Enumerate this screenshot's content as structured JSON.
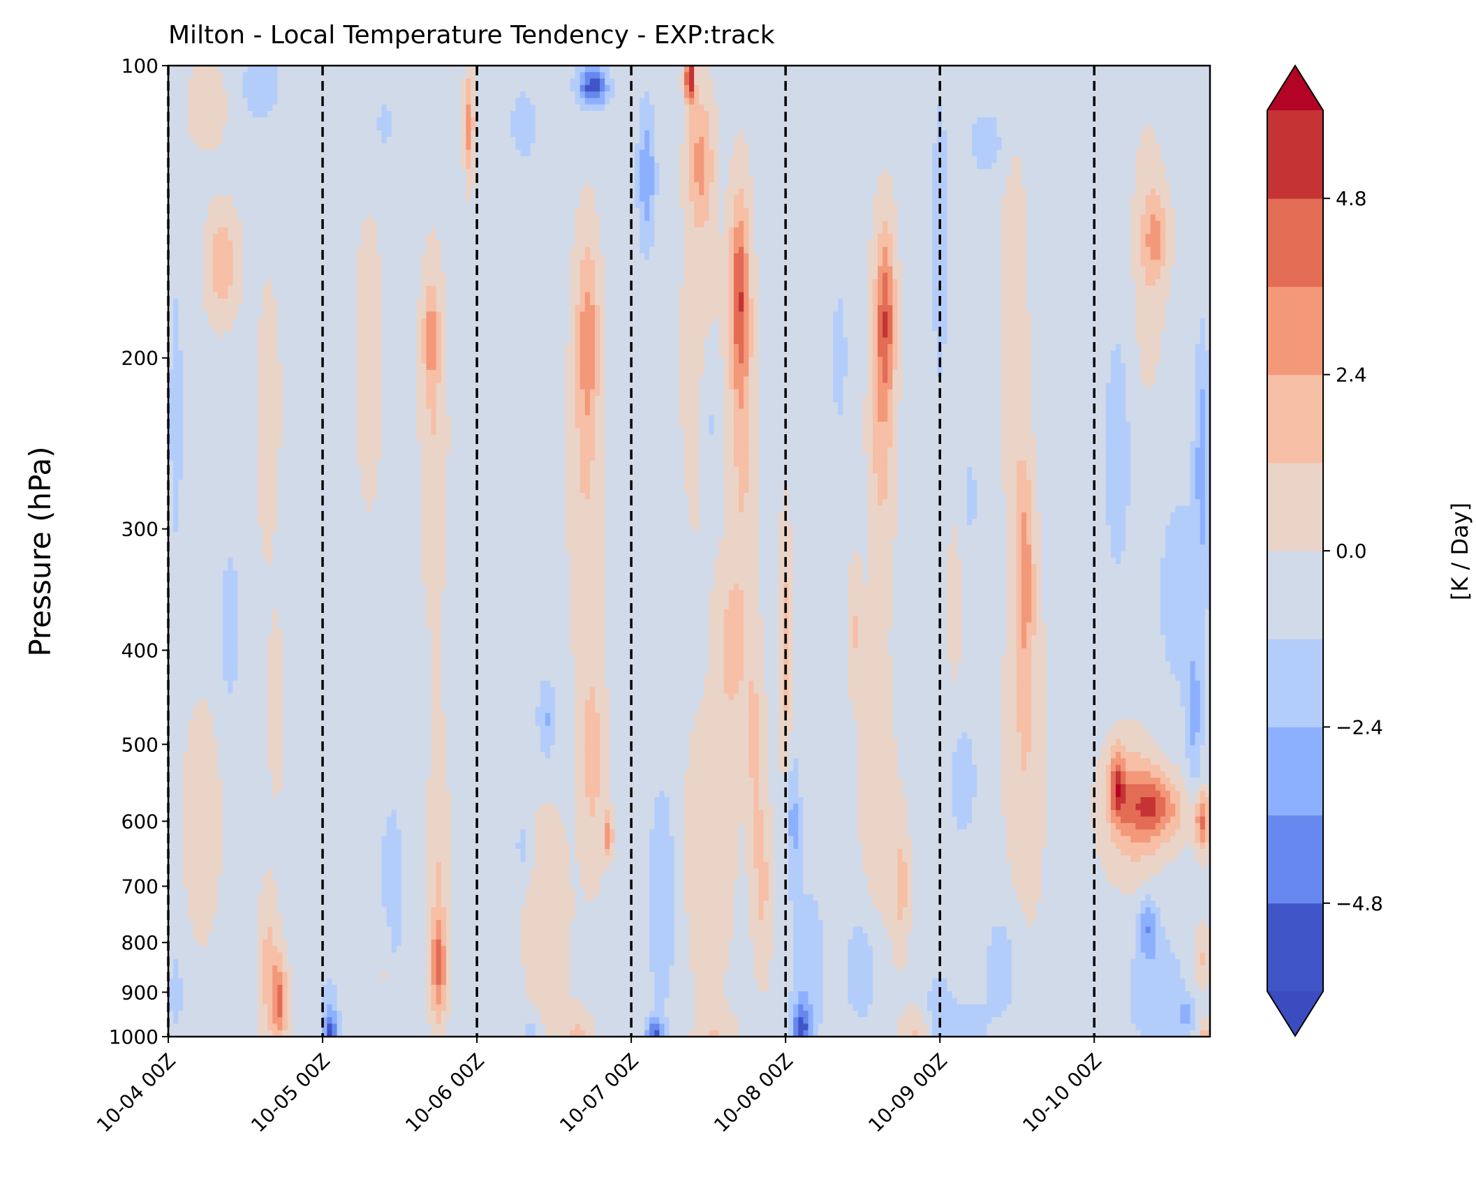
{
  "chart_data": {
    "type": "heatmap",
    "title": "Milton - Local Temperature Tendency - EXP:track",
    "ylabel": "Pressure (hPa)",
    "xlabel": "",
    "y_scale": "log",
    "y_inverted": true,
    "ylim": [
      1000,
      100
    ],
    "y_ticks": [
      100,
      200,
      300,
      400,
      500,
      600,
      700,
      800,
      900,
      1000
    ],
    "x_range_days": [
      0,
      6.75
    ],
    "x_tick_labels": [
      "10-04 00Z",
      "10-05 00Z",
      "10-06 00Z",
      "10-07 00Z",
      "10-08 00Z",
      "10-09 00Z",
      "10-10 00Z"
    ],
    "vertical_dashed_lines": [
      "10-04 00Z",
      "10-05 00Z",
      "10-06 00Z",
      "10-07 00Z",
      "10-08 00Z",
      "10-09 00Z",
      "10-10 00Z"
    ],
    "colorbar": {
      "label": "[K / Day]",
      "ticks": [
        -4.8,
        -2.4,
        0.0,
        2.4,
        4.8
      ],
      "tick_labels": [
        "−4.8",
        "−2.4",
        "0.0",
        "2.4",
        "4.8"
      ],
      "levels": [
        -6.0,
        -4.8,
        -3.6,
        -2.4,
        -1.2,
        0.0,
        1.2,
        2.4,
        3.6,
        4.8,
        6.0
      ],
      "colors": [
        "#4055c8",
        "#6788ee",
        "#8db0fe",
        "#b3cdfb",
        "#d1dae9",
        "#ead4c8",
        "#f6bfa6",
        "#f4987a",
        "#e36c55",
        "#c53334"
      ],
      "under_color": "#3b4cc0",
      "over_color": "#b40426",
      "extend": "both",
      "colormap": "coolwarm"
    },
    "features": [
      {
        "t": 0.05,
        "p": 230,
        "v": -2.0,
        "sx": 0.04,
        "sy": 0.3
      },
      {
        "t": 0.35,
        "p": 160,
        "v": 2.5,
        "sx": 0.1,
        "sy": 0.12
      },
      {
        "t": 0.25,
        "p": 110,
        "v": 1.2,
        "sx": 0.12,
        "sy": 0.1
      },
      {
        "t": 0.6,
        "p": 105,
        "v": -2.0,
        "sx": 0.12,
        "sy": 0.08
      },
      {
        "t": 0.7,
        "p": 330,
        "v": -0.5,
        "sx": 0.18,
        "sy": 0.35
      },
      {
        "t": 0.4,
        "p": 380,
        "v": -2.0,
        "sx": 0.06,
        "sy": 0.18
      },
      {
        "t": 0.7,
        "p": 450,
        "v": 1.6,
        "sx": 0.05,
        "sy": 0.2
      },
      {
        "t": 0.65,
        "p": 250,
        "v": 1.4,
        "sx": 0.08,
        "sy": 0.35
      },
      {
        "t": 0.72,
        "p": 920,
        "v": 4.0,
        "sx": 0.05,
        "sy": 0.1
      },
      {
        "t": 0.65,
        "p": 850,
        "v": 2.0,
        "sx": 0.06,
        "sy": 0.18
      },
      {
        "t": 0.22,
        "p": 600,
        "v": 0.6,
        "sx": 0.18,
        "sy": 0.4
      },
      {
        "t": 0.05,
        "p": 900,
        "v": -1.4,
        "sx": 0.06,
        "sy": 0.12
      },
      {
        "t": 1.05,
        "p": 1000,
        "v": -5.2,
        "sx": 0.04,
        "sy": 0.04
      },
      {
        "t": 1.05,
        "p": 940,
        "v": -2.0,
        "sx": 0.06,
        "sy": 0.08
      },
      {
        "t": 1.3,
        "p": 200,
        "v": 0.8,
        "sx": 0.1,
        "sy": 0.4
      },
      {
        "t": 1.7,
        "p": 190,
        "v": 2.8,
        "sx": 0.05,
        "sy": 0.12
      },
      {
        "t": 1.72,
        "p": 240,
        "v": 1.5,
        "sx": 0.08,
        "sy": 0.4
      },
      {
        "t": 1.95,
        "p": 115,
        "v": 3.5,
        "sx": 0.03,
        "sy": 0.12
      },
      {
        "t": 1.4,
        "p": 115,
        "v": -1.0,
        "sx": 0.15,
        "sy": 0.12
      },
      {
        "t": 1.75,
        "p": 850,
        "v": 4.0,
        "sx": 0.05,
        "sy": 0.12
      },
      {
        "t": 1.75,
        "p": 650,
        "v": 1.5,
        "sx": 0.06,
        "sy": 0.3
      },
      {
        "t": 1.45,
        "p": 700,
        "v": -1.2,
        "sx": 0.12,
        "sy": 0.3
      },
      {
        "t": 1.4,
        "p": 850,
        "v": 1.0,
        "sx": 0.04,
        "sy": 0.1
      },
      {
        "t": 2.1,
        "p": 450,
        "v": -0.8,
        "sx": 0.1,
        "sy": 0.3
      },
      {
        "t": 2.3,
        "p": 115,
        "v": -1.5,
        "sx": 0.1,
        "sy": 0.1
      },
      {
        "t": 2.75,
        "p": 105,
        "v": -5.2,
        "sx": 0.1,
        "sy": 0.05
      },
      {
        "t": 2.72,
        "p": 190,
        "v": 2.8,
        "sx": 0.07,
        "sy": 0.22
      },
      {
        "t": 2.7,
        "p": 260,
        "v": 1.5,
        "sx": 0.1,
        "sy": 0.45
      },
      {
        "t": 2.45,
        "p": 470,
        "v": -2.2,
        "sx": 0.06,
        "sy": 0.1
      },
      {
        "t": 2.75,
        "p": 520,
        "v": 2.0,
        "sx": 0.08,
        "sy": 0.25
      },
      {
        "t": 2.85,
        "p": 620,
        "v": 3.5,
        "sx": 0.03,
        "sy": 0.05
      },
      {
        "t": 2.45,
        "p": 750,
        "v": 1.2,
        "sx": 0.15,
        "sy": 0.25
      },
      {
        "t": 2.3,
        "p": 640,
        "v": -1.4,
        "sx": 0.06,
        "sy": 0.08
      },
      {
        "t": 2.35,
        "p": 1000,
        "v": -2.5,
        "sx": 0.04,
        "sy": 0.04
      },
      {
        "t": 2.65,
        "p": 1000,
        "v": 1.8,
        "sx": 0.1,
        "sy": 0.06
      },
      {
        "t": 3.1,
        "p": 130,
        "v": -3.0,
        "sx": 0.06,
        "sy": 0.18
      },
      {
        "t": 3.38,
        "p": 103,
        "v": 6.8,
        "sx": 0.03,
        "sy": 0.06
      },
      {
        "t": 3.45,
        "p": 125,
        "v": 3.0,
        "sx": 0.08,
        "sy": 0.15
      },
      {
        "t": 3.7,
        "p": 170,
        "v": 4.2,
        "sx": 0.06,
        "sy": 0.22
      },
      {
        "t": 3.72,
        "p": 230,
        "v": 2.0,
        "sx": 0.08,
        "sy": 0.4
      },
      {
        "t": 3.45,
        "p": 200,
        "v": 1.2,
        "sx": 0.12,
        "sy": 0.4
      },
      {
        "t": 3.5,
        "p": 230,
        "v": -1.8,
        "sx": 0.06,
        "sy": 0.2
      },
      {
        "t": 3.65,
        "p": 400,
        "v": 2.0,
        "sx": 0.1,
        "sy": 0.2
      },
      {
        "t": 3.8,
        "p": 500,
        "v": 1.8,
        "sx": 0.06,
        "sy": 0.25
      },
      {
        "t": 3.5,
        "p": 650,
        "v": 1.5,
        "sx": 0.15,
        "sy": 0.3
      },
      {
        "t": 3.15,
        "p": 1000,
        "v": -4.5,
        "sx": 0.06,
        "sy": 0.04
      },
      {
        "t": 3.2,
        "p": 720,
        "v": -1.8,
        "sx": 0.1,
        "sy": 0.3
      },
      {
        "t": 3.85,
        "p": 700,
        "v": 1.8,
        "sx": 0.06,
        "sy": 0.2
      },
      {
        "t": 3.55,
        "p": 1000,
        "v": 1.5,
        "sx": 0.12,
        "sy": 0.06
      },
      {
        "t": 4.0,
        "p": 400,
        "v": 2.0,
        "sx": 0.04,
        "sy": 0.3
      },
      {
        "t": 4.05,
        "p": 600,
        "v": -2.5,
        "sx": 0.05,
        "sy": 0.15
      },
      {
        "t": 4.1,
        "p": 980,
        "v": -4.5,
        "sx": 0.06,
        "sy": 0.06
      },
      {
        "t": 4.15,
        "p": 850,
        "v": -1.8,
        "sx": 0.12,
        "sy": 0.2
      },
      {
        "t": 4.35,
        "p": 200,
        "v": -1.0,
        "sx": 0.1,
        "sy": 0.35
      },
      {
        "t": 4.65,
        "p": 180,
        "v": 4.0,
        "sx": 0.06,
        "sy": 0.2
      },
      {
        "t": 4.62,
        "p": 230,
        "v": 2.2,
        "sx": 0.08,
        "sy": 0.35
      },
      {
        "t": 4.45,
        "p": 380,
        "v": 1.6,
        "sx": 0.05,
        "sy": 0.15
      },
      {
        "t": 4.75,
        "p": 700,
        "v": 2.0,
        "sx": 0.05,
        "sy": 0.15
      },
      {
        "t": 4.6,
        "p": 600,
        "v": 1.0,
        "sx": 0.12,
        "sy": 0.4
      },
      {
        "t": 4.85,
        "p": 1000,
        "v": 1.8,
        "sx": 0.1,
        "sy": 0.06
      },
      {
        "t": 4.5,
        "p": 850,
        "v": -1.8,
        "sx": 0.12,
        "sy": 0.15
      },
      {
        "t": 5.0,
        "p": 150,
        "v": -1.6,
        "sx": 0.06,
        "sy": 0.4
      },
      {
        "t": 5.3,
        "p": 120,
        "v": -1.6,
        "sx": 0.12,
        "sy": 0.08
      },
      {
        "t": 5.2,
        "p": 280,
        "v": -0.9,
        "sx": 0.12,
        "sy": 0.35
      },
      {
        "t": 5.15,
        "p": 550,
        "v": -1.5,
        "sx": 0.1,
        "sy": 0.15
      },
      {
        "t": 5.2,
        "p": 1000,
        "v": -2.0,
        "sx": 0.1,
        "sy": 0.08
      },
      {
        "t": 5.0,
        "p": 950,
        "v": -1.8,
        "sx": 0.1,
        "sy": 0.1
      },
      {
        "t": 5.48,
        "p": 190,
        "v": 1.5,
        "sx": 0.08,
        "sy": 0.4
      },
      {
        "t": 5.55,
        "p": 330,
        "v": 3.0,
        "sx": 0.06,
        "sy": 0.25
      },
      {
        "t": 5.55,
        "p": 500,
        "v": 1.5,
        "sx": 0.12,
        "sy": 0.4
      },
      {
        "t": 5.1,
        "p": 350,
        "v": 1.4,
        "sx": 0.05,
        "sy": 0.2
      },
      {
        "t": 5.4,
        "p": 850,
        "v": -1.5,
        "sx": 0.12,
        "sy": 0.15
      },
      {
        "t": 6.15,
        "p": 550,
        "v": 4.2,
        "sx": 0.05,
        "sy": 0.08
      },
      {
        "t": 6.4,
        "p": 580,
        "v": 3.8,
        "sx": 0.18,
        "sy": 0.08
      },
      {
        "t": 6.25,
        "p": 580,
        "v": 2.8,
        "sx": 0.18,
        "sy": 0.15
      },
      {
        "t": 6.7,
        "p": 600,
        "v": 4.2,
        "sx": 0.05,
        "sy": 0.07
      },
      {
        "t": 6.55,
        "p": 350,
        "v": -1.2,
        "sx": 0.2,
        "sy": 0.35
      },
      {
        "t": 6.4,
        "p": 150,
        "v": 2.5,
        "sx": 0.08,
        "sy": 0.1
      },
      {
        "t": 6.35,
        "p": 160,
        "v": 1.2,
        "sx": 0.1,
        "sy": 0.3
      },
      {
        "t": 6.7,
        "p": 250,
        "v": -2.5,
        "sx": 0.05,
        "sy": 0.3
      },
      {
        "t": 6.15,
        "p": 250,
        "v": -1.5,
        "sx": 0.1,
        "sy": 0.35
      },
      {
        "t": 6.4,
        "p": 900,
        "v": -1.8,
        "sx": 0.2,
        "sy": 0.15
      },
      {
        "t": 6.35,
        "p": 770,
        "v": -2.8,
        "sx": 0.06,
        "sy": 0.07
      },
      {
        "t": 6.7,
        "p": 830,
        "v": 1.8,
        "sx": 0.05,
        "sy": 0.07
      },
      {
        "t": 6.72,
        "p": 1000,
        "v": 2.5,
        "sx": 0.04,
        "sy": 0.04
      },
      {
        "t": 6.6,
        "p": 950,
        "v": -2.5,
        "sx": 0.05,
        "sy": 0.04
      },
      {
        "t": 6.65,
        "p": 470,
        "v": -2.0,
        "sx": 0.05,
        "sy": 0.2
      }
    ]
  }
}
